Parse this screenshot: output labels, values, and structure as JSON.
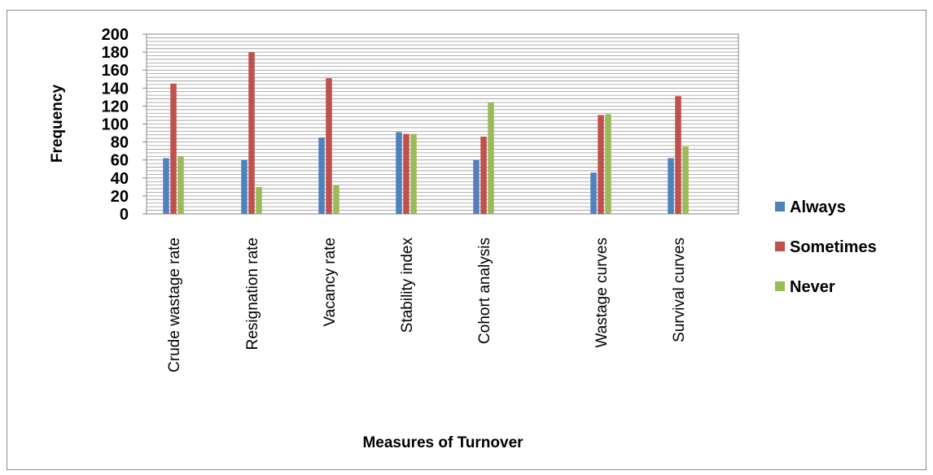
{
  "chart_data": {
    "type": "bar",
    "categories": [
      "Crude wastage rate",
      "Resignation rate",
      "Vacancy rate",
      "Stability index",
      "Cohort analysis",
      "Wastage curves",
      "Survival curves"
    ],
    "series": [
      {
        "name": "Always",
        "color": "#4f81bd",
        "values": [
          62,
          60,
          85,
          91,
          60,
          46,
          62
        ]
      },
      {
        "name": "Sometimes",
        "color": "#c0504d",
        "values": [
          145,
          180,
          151,
          89,
          86,
          110,
          131
        ]
      },
      {
        "name": "Never",
        "color": "#9bbb59",
        "values": [
          64,
          30,
          32,
          89,
          124,
          111,
          75
        ]
      }
    ],
    "xlabel": "Measures of Turnover",
    "ylabel": "Frequency",
    "ylim": [
      0,
      200
    ],
    "yticks": [
      "0",
      "20",
      "40",
      "60",
      "80",
      "100",
      "120",
      "140",
      "160",
      "180",
      "200"
    ],
    "grid": "horizontal minor lines on",
    "legend": "right"
  }
}
